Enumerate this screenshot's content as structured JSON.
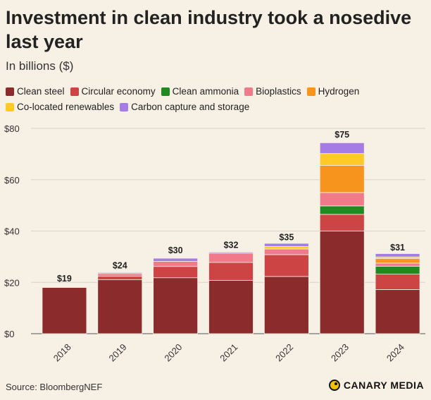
{
  "chart_data": {
    "type": "bar",
    "stacked": true,
    "title": "Investment in clean industry took a nosedive last year",
    "subtitle": "In billions ($)",
    "xlabel": "",
    "ylabel": "",
    "ylim": [
      0,
      80
    ],
    "yticks": [
      0,
      20,
      40,
      60,
      80
    ],
    "ytick_labels": [
      "$0",
      "$20",
      "$40",
      "$60",
      "$80"
    ],
    "grid": true,
    "legend_position": "top",
    "categories": [
      "2018",
      "2019",
      "2020",
      "2021",
      "2022",
      "2023",
      "2024"
    ],
    "totals": [
      "$19",
      "$24",
      "$30",
      "$32",
      "$35",
      "$75",
      "$31"
    ],
    "total_values": [
      19,
      24,
      30,
      32,
      35,
      75,
      31
    ],
    "series": [
      {
        "name": "Clean steel",
        "color": "#8b2b2b",
        "values": [
          18,
          21,
          21.8,
          20.8,
          22.3,
          40,
          17.2
        ]
      },
      {
        "name": "Circular economy",
        "color": "#cc4444",
        "values": [
          0,
          1.4,
          4.4,
          7,
          8.5,
          6.5,
          6
        ]
      },
      {
        "name": "Clean ammonia",
        "color": "#1f8a1f",
        "values": [
          0,
          0,
          0,
          0,
          0,
          3.3,
          3.1
        ]
      },
      {
        "name": "Bioplastics",
        "color": "#f07a8a",
        "values": [
          0,
          1,
          2,
          3.6,
          2.2,
          5.2,
          1.2
        ]
      },
      {
        "name": "Hydrogen",
        "color": "#f7941d",
        "values": [
          0,
          0,
          0,
          0,
          0,
          10.6,
          1.8
        ]
      },
      {
        "name": "Co-located renewables",
        "color": "#ffc928",
        "values": [
          0,
          0,
          0,
          0,
          1,
          4.6,
          0.6
        ]
      },
      {
        "name": "Carbon capture and storage",
        "color": "#a57ce6",
        "values": [
          0,
          0.4,
          1.2,
          0.4,
          1.2,
          4.2,
          1.3
        ]
      }
    ]
  },
  "footer": {
    "source": "Source: BloombergNEF",
    "brand": "CANARY MEDIA"
  }
}
